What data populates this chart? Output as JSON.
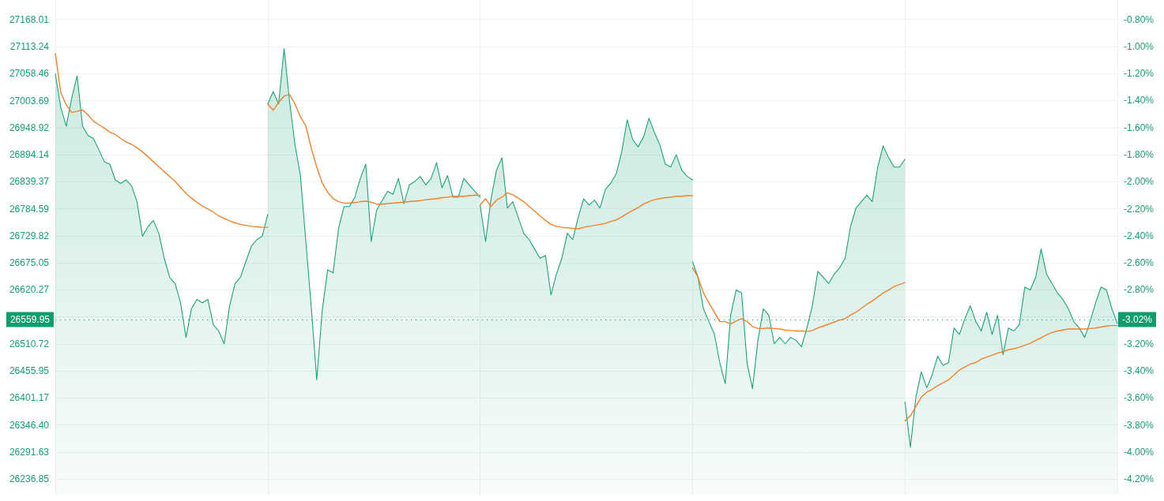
{
  "chart_data": {
    "type": "area",
    "categories": [
      null,
      null,
      null,
      null,
      null,
      null,
      null,
      null,
      null,
      null,
      null,
      null,
      null,
      null,
      null,
      null,
      null,
      null,
      null,
      null,
      null,
      null,
      null,
      null,
      null,
      null,
      null,
      null,
      null,
      null,
      null,
      null,
      null,
      null,
      null,
      null,
      null,
      null,
      null,
      null,
      null,
      null,
      null,
      null,
      null,
      null,
      null,
      null,
      null,
      null,
      null,
      null,
      null,
      null,
      null,
      null,
      null,
      null,
      null,
      null,
      null,
      null,
      null,
      null,
      null,
      null,
      null,
      null,
      null,
      null,
      null,
      null,
      null,
      null,
      null,
      null,
      null,
      null,
      null,
      null,
      null,
      null,
      null,
      null,
      null,
      null,
      null,
      null,
      null,
      null,
      null,
      null,
      null,
      null,
      null,
      null,
      null,
      null,
      null,
      null,
      null,
      null,
      null,
      null,
      null,
      null,
      null,
      null,
      null,
      null,
      null,
      null,
      null,
      null,
      null,
      null,
      null,
      null,
      null,
      null,
      null,
      null,
      null,
      null,
      null,
      null,
      null,
      null,
      null,
      null,
      null,
      null,
      null,
      null,
      null,
      null,
      null,
      null,
      null,
      null,
      null,
      null,
      null,
      null,
      null,
      null,
      null,
      null,
      null,
      null,
      null,
      null,
      null,
      null,
      null,
      null,
      null,
      null,
      null,
      null,
      null,
      null,
      null,
      null,
      null,
      null,
      null,
      null,
      null,
      null,
      null,
      null,
      null,
      null,
      null,
      null,
      null,
      null,
      null,
      null,
      null,
      null,
      null,
      null,
      null,
      null,
      null,
      null,
      null,
      null,
      null,
      null,
      null,
      null,
      null,
      null
    ],
    "series": [
      {
        "color": "#1ba37b",
        "values": [
          27058,
          26990,
          26952,
          27008,
          27054,
          26952,
          26933,
          26927,
          26904,
          26880,
          26875,
          26843,
          26836,
          26843,
          26831,
          26799,
          26729,
          26748,
          26761,
          26735,
          26684,
          26646,
          26633,
          26594,
          26524,
          26582,
          26601,
          26594,
          26601,
          26550,
          26537,
          26511,
          26588,
          26633,
          26646,
          26678,
          26709,
          26722,
          26729,
          26773,
          null,
          null,
          null,
          null,
          null,
          null,
          null,
          null,
          null,
          null,
          null,
          null,
          null,
          null,
          null,
          null,
          null,
          null,
          null,
          null,
          null,
          null,
          null,
          null,
          null,
          null,
          null,
          null,
          null,
          null,
          null,
          null,
          null,
          null,
          null,
          null,
          null,
          null,
          null,
          null,
          null,
          null,
          null,
          null,
          null,
          null,
          null,
          null,
          null,
          null,
          null,
          null,
          null,
          null,
          null,
          null,
          null,
          null,
          null,
          null,
          null,
          null,
          null,
          null,
          null,
          null,
          null,
          null,
          null,
          null,
          null,
          null,
          null,
          null,
          null,
          null,
          null,
          null,
          null,
          null,
          null,
          null,
          null,
          null,
          null,
          null,
          null,
          null,
          null,
          null,
          null,
          null,
          null,
          null,
          null,
          null,
          null,
          null,
          null,
          null,
          null,
          null,
          null,
          null,
          null,
          null,
          null,
          null,
          null,
          null,
          null,
          null,
          null,
          null,
          null,
          null,
          null,
          null,
          null,
          null,
          null,
          null,
          null,
          null,
          null,
          null,
          null,
          null,
          null,
          null,
          null,
          null,
          null,
          null,
          null,
          null,
          null,
          null,
          null,
          null,
          null,
          null,
          null,
          null,
          null,
          null,
          null,
          null,
          null,
          null,
          null,
          null,
          null,
          null,
          null,
          null
        ]
      },
      {
        "color": "#1ba37b",
        "values": [
          null,
          null,
          null,
          null,
          null,
          null,
          null,
          null,
          null,
          null,
          null,
          null,
          null,
          null,
          null,
          null,
          null,
          null,
          null,
          null,
          null,
          null,
          null,
          null,
          null,
          null,
          null,
          null,
          null,
          null,
          null,
          null,
          null,
          null,
          null,
          null,
          null,
          null,
          null,
          26997,
          27022,
          26997,
          27109,
          27003,
          26915,
          26852,
          26718,
          26584,
          26438,
          26578,
          26661,
          26655,
          26744,
          26789,
          26789,
          26808,
          26846,
          26875,
          26718,
          26782,
          26801,
          26820,
          26814,
          26846,
          26795,
          26833,
          26840,
          26850,
          26833,
          26846,
          26878,
          26827,
          26852,
          26808,
          26808,
          26846,
          26833,
          26820,
          26808,
          null,
          null,
          null,
          null,
          null,
          null,
          null,
          null,
          null,
          null,
          null,
          null,
          null,
          null,
          null,
          null,
          null,
          null,
          null,
          null,
          null,
          null,
          null,
          null,
          null,
          null,
          null,
          null,
          null,
          null,
          null,
          null,
          null,
          null,
          null,
          null,
          null,
          null,
          null,
          null,
          null,
          null,
          null,
          null,
          null,
          null,
          null,
          null,
          null,
          null,
          null,
          null,
          null,
          null,
          null,
          null,
          null,
          null,
          null,
          null,
          null,
          null,
          null,
          null,
          null,
          null,
          null,
          null,
          null,
          null,
          null,
          null,
          null,
          null,
          null,
          null,
          null,
          null,
          null,
          null,
          null,
          null,
          null,
          null,
          null,
          null,
          null,
          null,
          null,
          null,
          null,
          null,
          null,
          null,
          null,
          null,
          null,
          null,
          null,
          null,
          null,
          null,
          null,
          null,
          null,
          null,
          null,
          null,
          null,
          null,
          null,
          null,
          null,
          null,
          null,
          null,
          null
        ]
      },
      {
        "color": "#1ba37b",
        "values": [
          null,
          null,
          null,
          null,
          null,
          null,
          null,
          null,
          null,
          null,
          null,
          null,
          null,
          null,
          null,
          null,
          null,
          null,
          null,
          null,
          null,
          null,
          null,
          null,
          null,
          null,
          null,
          null,
          null,
          null,
          null,
          null,
          null,
          null,
          null,
          null,
          null,
          null,
          null,
          null,
          null,
          null,
          null,
          null,
          null,
          null,
          null,
          null,
          null,
          null,
          null,
          null,
          null,
          null,
          null,
          null,
          null,
          null,
          null,
          null,
          null,
          null,
          null,
          null,
          null,
          null,
          null,
          null,
          null,
          null,
          null,
          null,
          null,
          null,
          null,
          null,
          null,
          null,
          26792,
          26718,
          26805,
          26863,
          26888,
          26786,
          26799,
          26767,
          26735,
          26722,
          26703,
          26684,
          26690,
          26610,
          26652,
          26684,
          26735,
          26722,
          26767,
          26805,
          26792,
          26802,
          26786,
          26824,
          26837,
          26856,
          26900,
          26965,
          26925,
          26910,
          26930,
          26968,
          26939,
          26914,
          26875,
          26869,
          26894,
          26863,
          26850,
          26843,
          null,
          null,
          null,
          null,
          null,
          null,
          null,
          null,
          null,
          null,
          null,
          null,
          null,
          null,
          null,
          null,
          null,
          null,
          null,
          null,
          null,
          null,
          null,
          null,
          null,
          null,
          null,
          null,
          null,
          null,
          null,
          null,
          null,
          null,
          null,
          null,
          null,
          null,
          null,
          null,
          null,
          null,
          null,
          null,
          null,
          null,
          null,
          null,
          null,
          null,
          null,
          null,
          null,
          null,
          null,
          null,
          null,
          null,
          null,
          null,
          null,
          null,
          null,
          null,
          null,
          null,
          null,
          null,
          null,
          null,
          null,
          null,
          null,
          null,
          null,
          null,
          null,
          null
        ]
      },
      {
        "color": "#1ba37b",
        "values": [
          null,
          null,
          null,
          null,
          null,
          null,
          null,
          null,
          null,
          null,
          null,
          null,
          null,
          null,
          null,
          null,
          null,
          null,
          null,
          null,
          null,
          null,
          null,
          null,
          null,
          null,
          null,
          null,
          null,
          null,
          null,
          null,
          null,
          null,
          null,
          null,
          null,
          null,
          null,
          null,
          null,
          null,
          null,
          null,
          null,
          null,
          null,
          null,
          null,
          null,
          null,
          null,
          null,
          null,
          null,
          null,
          null,
          null,
          null,
          null,
          null,
          null,
          null,
          null,
          null,
          null,
          null,
          null,
          null,
          null,
          null,
          null,
          null,
          null,
          null,
          null,
          null,
          null,
          null,
          null,
          null,
          null,
          null,
          null,
          null,
          null,
          null,
          null,
          null,
          null,
          null,
          null,
          null,
          null,
          null,
          null,
          null,
          null,
          null,
          null,
          null,
          null,
          null,
          null,
          null,
          null,
          null,
          null,
          null,
          null,
          null,
          null,
          null,
          null,
          null,
          null,
          null,
          26677,
          26646,
          26582,
          26556,
          26531,
          26473,
          26430,
          26569,
          26620,
          26614,
          26473,
          26420,
          26518,
          26582,
          26569,
          26511,
          26524,
          26511,
          26524,
          26518,
          26505,
          26543,
          26588,
          26658,
          26646,
          26633,
          26652,
          26665,
          26684,
          26748,
          26786,
          26799,
          26812,
          26799,
          26869,
          26912,
          26888,
          26869,
          26869,
          26885,
          null,
          null,
          null,
          null,
          null,
          null,
          null,
          null,
          null,
          null,
          null,
          null,
          null,
          null,
          null,
          null,
          null,
          null,
          null,
          null,
          null,
          null,
          null,
          null,
          null,
          null,
          null,
          null,
          null,
          null,
          null,
          null,
          null,
          null,
          null,
          null,
          null,
          null,
          null
        ]
      },
      {
        "color": "#1ba37b",
        "values": [
          null,
          null,
          null,
          null,
          null,
          null,
          null,
          null,
          null,
          null,
          null,
          null,
          null,
          null,
          null,
          null,
          null,
          null,
          null,
          null,
          null,
          null,
          null,
          null,
          null,
          null,
          null,
          null,
          null,
          null,
          null,
          null,
          null,
          null,
          null,
          null,
          null,
          null,
          null,
          null,
          null,
          null,
          null,
          null,
          null,
          null,
          null,
          null,
          null,
          null,
          null,
          null,
          null,
          null,
          null,
          null,
          null,
          null,
          null,
          null,
          null,
          null,
          null,
          null,
          null,
          null,
          null,
          null,
          null,
          null,
          null,
          null,
          null,
          null,
          null,
          null,
          null,
          null,
          null,
          null,
          null,
          null,
          null,
          null,
          null,
          null,
          null,
          null,
          null,
          null,
          null,
          null,
          null,
          null,
          null,
          null,
          null,
          null,
          null,
          null,
          null,
          null,
          null,
          null,
          null,
          null,
          null,
          null,
          null,
          null,
          null,
          null,
          null,
          null,
          null,
          null,
          null,
          null,
          null,
          null,
          null,
          null,
          null,
          null,
          null,
          null,
          null,
          null,
          null,
          null,
          null,
          null,
          null,
          null,
          null,
          null,
          null,
          null,
          null,
          null,
          null,
          null,
          null,
          null,
          null,
          null,
          null,
          null,
          null,
          null,
          null,
          null,
          null,
          null,
          null,
          null,
          26393,
          26301,
          26403,
          26454,
          26422,
          26448,
          26486,
          26467,
          26473,
          26543,
          26530,
          26562,
          26588,
          26556,
          26537,
          26575,
          26530,
          26569,
          26489,
          26543,
          26537,
          26550,
          26626,
          26620,
          26646,
          26703,
          26652,
          26633,
          26614,
          26601,
          26582,
          26556,
          26543,
          26524,
          26556,
          26594,
          26626,
          26620,
          26582,
          26552
        ]
      },
      {
        "type": "line",
        "color": "#f5822a",
        "values": [
          27099,
          27020,
          26995,
          26980,
          26982,
          26985,
          26975,
          26962,
          26955,
          26948,
          26940,
          26935,
          26927,
          26920,
          26915,
          26908,
          26900,
          26890,
          26880,
          26870,
          26860,
          26850,
          26840,
          26828,
          26816,
          26806,
          26798,
          26790,
          26784,
          26778,
          26770,
          26765,
          26760,
          26756,
          26753,
          26751,
          26749,
          26748,
          26747,
          26747,
          null,
          null,
          null,
          null,
          null,
          null,
          null,
          null,
          null,
          null,
          null,
          null,
          null,
          null,
          null,
          null,
          null,
          null,
          null,
          null,
          null,
          null,
          null,
          null,
          null,
          null,
          null,
          null,
          null,
          null,
          null,
          null,
          null,
          null,
          null,
          null,
          null,
          null,
          null,
          null,
          null,
          null,
          null,
          null,
          null,
          null,
          null,
          null,
          null,
          null,
          null,
          null,
          null,
          null,
          null,
          null,
          null,
          null,
          null,
          null,
          null,
          null,
          null,
          null,
          null,
          null,
          null,
          null,
          null,
          null,
          null,
          null,
          null,
          null,
          null,
          null,
          null,
          null,
          null,
          null,
          null,
          null,
          null,
          null,
          null,
          null,
          null,
          null,
          null,
          null,
          null,
          null,
          null,
          null,
          null,
          null,
          null,
          null,
          null,
          null,
          null,
          null,
          null,
          null,
          null,
          null,
          null,
          null,
          null,
          null,
          null,
          null,
          null,
          null,
          null,
          null,
          null,
          null,
          null,
          null,
          null,
          null,
          null,
          null,
          null,
          null,
          null,
          null,
          null,
          null,
          null,
          null,
          null,
          null,
          null,
          null,
          null,
          null,
          null,
          null,
          null,
          null,
          null,
          null,
          null,
          null,
          null,
          null,
          null,
          null,
          null,
          null,
          null,
          null,
          null,
          null
        ]
      },
      {
        "type": "line",
        "color": "#f5822a",
        "values": [
          null,
          null,
          null,
          null,
          null,
          null,
          null,
          null,
          null,
          null,
          null,
          null,
          null,
          null,
          null,
          null,
          null,
          null,
          null,
          null,
          null,
          null,
          null,
          null,
          null,
          null,
          null,
          null,
          null,
          null,
          null,
          null,
          null,
          null,
          null,
          null,
          null,
          null,
          null,
          26997,
          26984,
          27000,
          27013,
          27016,
          26997,
          26971,
          26952,
          26907,
          26869,
          26837,
          26818,
          26805,
          26799,
          26796,
          26796,
          26797,
          26799,
          26800,
          26798,
          26794,
          26794,
          26795,
          26796,
          26797,
          26798,
          26799,
          26800,
          26801,
          26803,
          26804,
          26805,
          26807,
          26808,
          26810,
          26810,
          26810,
          26811,
          26812,
          26812,
          null,
          null,
          null,
          null,
          null,
          null,
          null,
          null,
          null,
          null,
          null,
          null,
          null,
          null,
          null,
          null,
          null,
          null,
          null,
          null,
          null,
          null,
          null,
          null,
          null,
          null,
          null,
          null,
          null,
          null,
          null,
          null,
          null,
          null,
          null,
          null,
          null,
          null,
          null,
          null,
          null,
          null,
          null,
          null,
          null,
          null,
          null,
          null,
          null,
          null,
          null,
          null,
          null,
          null,
          null,
          null,
          null,
          null,
          null,
          null,
          null,
          null,
          null,
          null,
          null,
          null,
          null,
          null,
          null,
          null,
          null,
          null,
          null,
          null,
          null,
          null,
          null,
          null,
          null,
          null,
          null,
          null,
          null,
          null,
          null,
          null,
          null,
          null,
          null,
          null,
          null,
          null,
          null,
          null,
          null,
          null,
          null,
          null,
          null,
          null,
          null,
          null,
          null,
          null,
          null,
          null,
          null,
          null,
          null,
          null,
          null,
          null,
          null,
          null,
          null,
          null,
          null
        ]
      },
      {
        "type": "line",
        "color": "#f5822a",
        "values": [
          null,
          null,
          null,
          null,
          null,
          null,
          null,
          null,
          null,
          null,
          null,
          null,
          null,
          null,
          null,
          null,
          null,
          null,
          null,
          null,
          null,
          null,
          null,
          null,
          null,
          null,
          null,
          null,
          null,
          null,
          null,
          null,
          null,
          null,
          null,
          null,
          null,
          null,
          null,
          null,
          null,
          null,
          null,
          null,
          null,
          null,
          null,
          null,
          null,
          null,
          null,
          null,
          null,
          null,
          null,
          null,
          null,
          null,
          null,
          null,
          null,
          null,
          null,
          null,
          null,
          null,
          null,
          null,
          null,
          null,
          null,
          null,
          null,
          null,
          null,
          null,
          null,
          null,
          26792,
          26805,
          26789,
          26802,
          26808,
          26817,
          26813,
          26806,
          26799,
          26789,
          26780,
          26770,
          26761,
          26753,
          26749,
          26747,
          26746,
          26745,
          26744,
          26747,
          26749,
          26751,
          26753,
          26755,
          26759,
          26762,
          26768,
          26775,
          26781,
          26787,
          26794,
          26799,
          26803,
          26805,
          26807,
          26808,
          26810,
          26810,
          26811,
          26811,
          null,
          null,
          null,
          null,
          null,
          null,
          null,
          null,
          null,
          null,
          null,
          null,
          null,
          null,
          null,
          null,
          null,
          null,
          null,
          null,
          null,
          null,
          null,
          null,
          null,
          null,
          null,
          null,
          null,
          null,
          null,
          null,
          null,
          null,
          null,
          null,
          null,
          null,
          null,
          null,
          null,
          null,
          null,
          null,
          null,
          null,
          null,
          null,
          null,
          null,
          null,
          null,
          null,
          null,
          null,
          null,
          null,
          null,
          null,
          null,
          null,
          null,
          null,
          null,
          null,
          null,
          null,
          null,
          null,
          null,
          null,
          null,
          null,
          null,
          null,
          null,
          null,
          null
        ]
      },
      {
        "type": "line",
        "color": "#f5822a",
        "values": [
          null,
          null,
          null,
          null,
          null,
          null,
          null,
          null,
          null,
          null,
          null,
          null,
          null,
          null,
          null,
          null,
          null,
          null,
          null,
          null,
          null,
          null,
          null,
          null,
          null,
          null,
          null,
          null,
          null,
          null,
          null,
          null,
          null,
          null,
          null,
          null,
          null,
          null,
          null,
          null,
          null,
          null,
          null,
          null,
          null,
          null,
          null,
          null,
          null,
          null,
          null,
          null,
          null,
          null,
          null,
          null,
          null,
          null,
          null,
          null,
          null,
          null,
          null,
          null,
          null,
          null,
          null,
          null,
          null,
          null,
          null,
          null,
          null,
          null,
          null,
          null,
          null,
          null,
          null,
          null,
          null,
          null,
          null,
          null,
          null,
          null,
          null,
          null,
          null,
          null,
          null,
          null,
          null,
          null,
          null,
          null,
          null,
          null,
          null,
          null,
          null,
          null,
          null,
          null,
          null,
          null,
          null,
          null,
          null,
          null,
          null,
          null,
          null,
          null,
          null,
          null,
          null,
          26665,
          26646,
          26614,
          26594,
          26575,
          26556,
          26556,
          26551,
          26557,
          26562,
          26556,
          26546,
          26542,
          26542,
          26543,
          26542,
          26541,
          26539,
          26538,
          26537,
          26537,
          26536,
          26538,
          26543,
          26547,
          26551,
          26555,
          26559,
          26562,
          26569,
          26575,
          26583,
          26591,
          26598,
          26606,
          26614,
          26620,
          26627,
          26631,
          26635,
          null,
          null,
          null,
          null,
          null,
          null,
          null,
          null,
          null,
          null,
          null,
          null,
          null,
          null,
          null,
          null,
          null,
          null,
          null,
          null,
          null,
          null,
          null,
          null,
          null,
          null,
          null,
          null,
          null,
          null,
          null,
          null,
          null,
          null,
          null,
          null,
          null,
          null,
          null
        ]
      },
      {
        "type": "line",
        "color": "#f5822a",
        "values": [
          null,
          null,
          null,
          null,
          null,
          null,
          null,
          null,
          null,
          null,
          null,
          null,
          null,
          null,
          null,
          null,
          null,
          null,
          null,
          null,
          null,
          null,
          null,
          null,
          null,
          null,
          null,
          null,
          null,
          null,
          null,
          null,
          null,
          null,
          null,
          null,
          null,
          null,
          null,
          null,
          null,
          null,
          null,
          null,
          null,
          null,
          null,
          null,
          null,
          null,
          null,
          null,
          null,
          null,
          null,
          null,
          null,
          null,
          null,
          null,
          null,
          null,
          null,
          null,
          null,
          null,
          null,
          null,
          null,
          null,
          null,
          null,
          null,
          null,
          null,
          null,
          null,
          null,
          null,
          null,
          null,
          null,
          null,
          null,
          null,
          null,
          null,
          null,
          null,
          null,
          null,
          null,
          null,
          null,
          null,
          null,
          null,
          null,
          null,
          null,
          null,
          null,
          null,
          null,
          null,
          null,
          null,
          null,
          null,
          null,
          null,
          null,
          null,
          null,
          null,
          null,
          null,
          null,
          null,
          null,
          null,
          null,
          null,
          null,
          null,
          null,
          null,
          null,
          null,
          null,
          null,
          null,
          null,
          null,
          null,
          null,
          null,
          null,
          null,
          null,
          null,
          null,
          null,
          null,
          null,
          null,
          null,
          null,
          null,
          null,
          null,
          null,
          null,
          null,
          null,
          null,
          26355,
          26365,
          26384,
          26403,
          26413,
          26419,
          26426,
          26432,
          26438,
          26448,
          26458,
          26464,
          26470,
          26473,
          26480,
          26484,
          26488,
          26492,
          26495,
          26499,
          26501,
          26504,
          26508,
          26512,
          26518,
          26523,
          26529,
          26534,
          26537,
          26539,
          26541,
          26541,
          26541,
          26541,
          26542,
          26543,
          26545,
          26547,
          26548,
          26548
        ]
      }
    ],
    "ylim": [
      26205.3,
      27207.5
    ],
    "yticks": [
      27168.01,
      27113.24,
      27058.46,
      27003.69,
      26948.92,
      26894.14,
      26839.37,
      26784.59,
      26729.82,
      26675.05,
      26620.27,
      {
        "value": 26565.5,
        "label": null
      },
      26510.72,
      26455.95,
      26401.17,
      {
        "value": 26346.4,
        "label": "26346.40"
      },
      26291.63,
      26236.85
    ],
    "y2lim": [
      -4.315,
      -0.656
    ],
    "y2ticks": [
      {
        "value": -0.8,
        "label": "-0.80%"
      },
      {
        "value": -1.0,
        "label": "-1.00%"
      },
      {
        "value": -1.2,
        "label": "-1.20%"
      },
      {
        "value": -1.4,
        "label": "-1.40%"
      },
      {
        "value": -1.6,
        "label": "-1.60%"
      },
      {
        "value": -1.8,
        "label": "-1.80%"
      },
      {
        "value": -2.0,
        "label": "-2.00%"
      },
      {
        "value": -2.2,
        "label": "-2.20%"
      },
      {
        "value": -2.4,
        "label": "-2.40%"
      },
      {
        "value": -2.6,
        "label": "-2.60%"
      },
      {
        "value": -2.8,
        "label": "-2.80%"
      },
      {
        "value": -3.0,
        "label": null
      },
      {
        "value": -3.2,
        "label": "-3.20%"
      },
      {
        "value": -3.4,
        "label": "-3.40%"
      },
      {
        "value": -3.6,
        "label": "-3.60%"
      },
      {
        "value": -3.8,
        "label": "-3.80%"
      },
      {
        "value": -4.0,
        "label": "-4.00%"
      },
      {
        "value": -4.2,
        "label": "-4.20%"
      }
    ],
    "ref_lines": [
      {
        "axis": "y",
        "value": 26559.95,
        "label": "26559.95",
        "color": "#0f9d6b",
        "line_style": "dotted"
      }
    ],
    "annotations": [
      "-3.02%"
    ],
    "grid": true,
    "marker": "none",
    "line_style": "solid"
  }
}
